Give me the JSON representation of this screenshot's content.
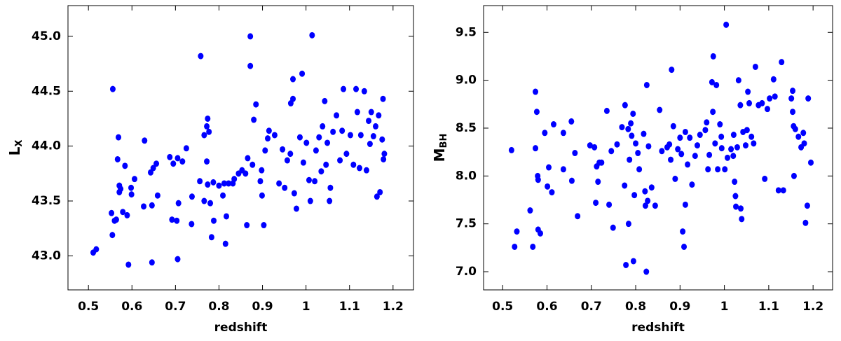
{
  "chart_data": [
    {
      "type": "scatter",
      "xlabel": "redshift",
      "ylabel": "L",
      "ylabel_subscript": "X",
      "color": "#0000ff",
      "xlim": [
        0.453,
        1.247
      ],
      "ylim": [
        42.69,
        45.28
      ],
      "xticks": [
        0.5,
        0.6,
        0.7,
        0.8,
        0.9,
        1.0,
        1.1,
        1.2
      ],
      "yticks": [
        {
          "value": 43,
          "label": "43.0"
        },
        {
          "value": 43.5,
          "label": "43.5"
        },
        {
          "value": 44,
          "label": "44.0"
        },
        {
          "value": 44.5,
          "label": "44.5"
        },
        {
          "value": 45,
          "label": "45.0"
        }
      ],
      "x": [
        0.511,
        0.518,
        0.553,
        0.556,
        0.555,
        0.56,
        0.564,
        0.567,
        0.569,
        0.571,
        0.571,
        0.574,
        0.579,
        0.584,
        0.589,
        0.592,
        0.598,
        0.599,
        0.606,
        0.627,
        0.629,
        0.643,
        0.646,
        0.646,
        0.649,
        0.656,
        0.659,
        0.687,
        0.692,
        0.695,
        0.703,
        0.705,
        0.705,
        0.707,
        0.716,
        0.725,
        0.737,
        0.738,
        0.756,
        0.758,
        0.766,
        0.766,
        0.772,
        0.772,
        0.774,
        0.774,
        0.777,
        0.78,
        0.783,
        0.787,
        0.788,
        0.8,
        0.809,
        0.812,
        0.815,
        0.817,
        0.822,
        0.832,
        0.835,
        0.845,
        0.853,
        0.861,
        0.864,
        0.866,
        0.872,
        0.872,
        0.877,
        0.88,
        0.885,
        0.895,
        0.898,
        0.899,
        0.903,
        0.906,
        0.912,
        0.915,
        0.928,
        0.938,
        0.946,
        0.951,
        0.957,
        0.964,
        0.965,
        0.97,
        0.97,
        0.973,
        0.978,
        0.986,
        0.991,
        0.994,
        1.001,
        1.007,
        1.01,
        1.014,
        1.02,
        1.023,
        1.03,
        1.035,
        1.038,
        1.043,
        1.046,
        1.049,
        1.054,
        1.056,
        1.062,
        1.07,
        1.078,
        1.083,
        1.086,
        1.093,
        1.102,
        1.109,
        1.115,
        1.118,
        1.123,
        1.126,
        1.134,
        1.139,
        1.144,
        1.147,
        1.15,
        1.155,
        1.16,
        1.163,
        1.167,
        1.17,
        1.175,
        1.177,
        1.178,
        1.18
      ],
      "y": [
        43.03,
        43.06,
        43.39,
        44.52,
        43.19,
        43.32,
        43.33,
        43.88,
        44.08,
        43.64,
        43.58,
        43.61,
        43.4,
        43.82,
        43.37,
        42.92,
        43.62,
        43.56,
        43.7,
        43.45,
        44.05,
        43.76,
        42.94,
        43.46,
        43.8,
        43.84,
        43.55,
        43.9,
        43.33,
        43.84,
        43.32,
        42.97,
        43.89,
        43.48,
        43.86,
        43.98,
        43.29,
        43.54,
        43.68,
        44.82,
        44.1,
        43.5,
        44.18,
        43.86,
        44.25,
        43.65,
        44.13,
        43.48,
        43.17,
        43.67,
        43.32,
        43.64,
        43.55,
        43.66,
        43.11,
        43.36,
        43.66,
        43.66,
        43.7,
        43.75,
        43.78,
        43.75,
        43.28,
        43.89,
        45.0,
        44.73,
        43.83,
        44.24,
        44.38,
        43.68,
        43.78,
        43.55,
        43.28,
        43.96,
        44.07,
        44.14,
        44.1,
        43.66,
        43.97,
        43.62,
        43.87,
        43.93,
        44.39,
        44.61,
        44.43,
        43.57,
        43.43,
        44.08,
        44.66,
        43.85,
        44.03,
        43.69,
        43.5,
        45.01,
        43.68,
        43.96,
        44.08,
        43.77,
        44.18,
        44.41,
        43.83,
        44.03,
        43.5,
        43.62,
        44.13,
        44.28,
        43.87,
        44.14,
        44.52,
        43.93,
        44.1,
        43.83,
        44.52,
        44.31,
        43.8,
        44.1,
        44.5,
        43.78,
        44.23,
        44.02,
        44.31,
        44.09,
        44.18,
        43.54,
        44.28,
        43.58,
        44.06,
        44.43,
        43.88,
        43.93
      ]
    },
    {
      "type": "scatter",
      "xlabel": "redshift",
      "ylabel": "M",
      "ylabel_subscript": "BH",
      "color": "#0000ff",
      "xlim": [
        0.457,
        1.244
      ],
      "ylim": [
        6.81,
        9.78
      ],
      "xticks": [
        0.5,
        0.6,
        0.7,
        0.8,
        0.9,
        1.0,
        1.1,
        1.2
      ],
      "yticks": [
        {
          "value": 7,
          "label": "7.0"
        },
        {
          "value": 7.5,
          "label": "7.5"
        },
        {
          "value": 8,
          "label": "8.0"
        },
        {
          "value": 8.5,
          "label": "8.5"
        },
        {
          "value": 9,
          "label": "9.0"
        },
        {
          "value": 9.5,
          "label": "9.5"
        }
      ],
      "x": [
        0.52,
        0.527,
        0.532,
        0.562,
        0.568,
        0.574,
        0.574,
        0.577,
        0.579,
        0.58,
        0.58,
        0.585,
        0.595,
        0.601,
        0.604,
        0.611,
        0.615,
        0.637,
        0.637,
        0.655,
        0.656,
        0.663,
        0.669,
        0.697,
        0.707,
        0.71,
        0.712,
        0.715,
        0.718,
        0.723,
        0.735,
        0.74,
        0.745,
        0.749,
        0.758,
        0.769,
        0.775,
        0.776,
        0.778,
        0.783,
        0.784,
        0.786,
        0.789,
        0.791,
        0.794,
        0.795,
        0.797,
        0.8,
        0.805,
        0.808,
        0.818,
        0.821,
        0.822,
        0.824,
        0.825,
        0.827,
        0.829,
        0.836,
        0.844,
        0.854,
        0.859,
        0.871,
        0.876,
        0.879,
        0.881,
        0.885,
        0.889,
        0.895,
        0.9,
        0.903,
        0.906,
        0.909,
        0.912,
        0.912,
        0.917,
        0.922,
        0.927,
        0.934,
        0.939,
        0.945,
        0.957,
        0.96,
        0.963,
        0.966,
        0.972,
        0.974,
        0.975,
        0.979,
        0.982,
        0.985,
        0.99,
        0.993,
        0.994,
        1.001,
        1.004,
        1.007,
        1.015,
        1.02,
        1.021,
        1.023,
        1.025,
        1.026,
        1.029,
        1.032,
        1.036,
        1.037,
        1.039,
        1.042,
        1.048,
        1.051,
        1.053,
        1.056,
        1.061,
        1.066,
        1.07,
        1.077,
        1.085,
        1.091,
        1.097,
        1.102,
        1.111,
        1.114,
        1.122,
        1.129,
        1.133,
        1.151,
        1.154,
        1.154,
        1.156,
        1.157,
        1.16,
        1.167,
        1.173,
        1.178,
        1.18,
        1.183,
        1.187,
        1.189,
        1.195
      ],
      "y": [
        8.27,
        7.26,
        7.42,
        7.64,
        7.26,
        8.88,
        8.29,
        8.67,
        8.0,
        7.96,
        7.44,
        7.4,
        8.45,
        7.89,
        8.09,
        7.83,
        8.54,
        8.45,
        8.07,
        8.57,
        7.95,
        8.24,
        7.58,
        8.32,
        8.3,
        7.72,
        8.1,
        7.94,
        8.14,
        8.14,
        8.68,
        7.7,
        8.26,
        7.46,
        8.33,
        8.51,
        7.9,
        8.74,
        7.07,
        8.49,
        7.5,
        8.17,
        8.55,
        8.42,
        8.65,
        7.11,
        7.8,
        8.34,
        8.24,
        8.07,
        8.44,
        7.84,
        7.69,
        7.0,
        8.95,
        7.74,
        8.31,
        7.88,
        7.69,
        8.69,
        8.26,
        8.3,
        8.33,
        8.17,
        9.11,
        8.52,
        7.97,
        8.28,
        8.4,
        8.23,
        7.42,
        7.26,
        7.7,
        8.46,
        8.12,
        8.4,
        7.91,
        8.21,
        8.32,
        8.43,
        8.48,
        8.56,
        8.07,
        8.22,
        8.98,
        8.67,
        9.25,
        8.34,
        8.95,
        8.07,
        8.54,
        8.41,
        8.29,
        8.07,
        9.58,
        8.19,
        8.28,
        8.21,
        8.43,
        7.94,
        7.79,
        7.68,
        8.3,
        9.0,
        8.74,
        7.66,
        7.55,
        8.46,
        8.32,
        8.48,
        8.88,
        8.76,
        8.41,
        8.34,
        9.14,
        8.74,
        8.76,
        7.97,
        8.7,
        8.81,
        9.01,
        8.83,
        7.85,
        9.19,
        7.85,
        8.81,
        8.89,
        8.67,
        8.52,
        8.0,
        8.49,
        8.41,
        8.3,
        8.45,
        8.34,
        7.51,
        7.69,
        8.81,
        8.14
      ]
    }
  ]
}
